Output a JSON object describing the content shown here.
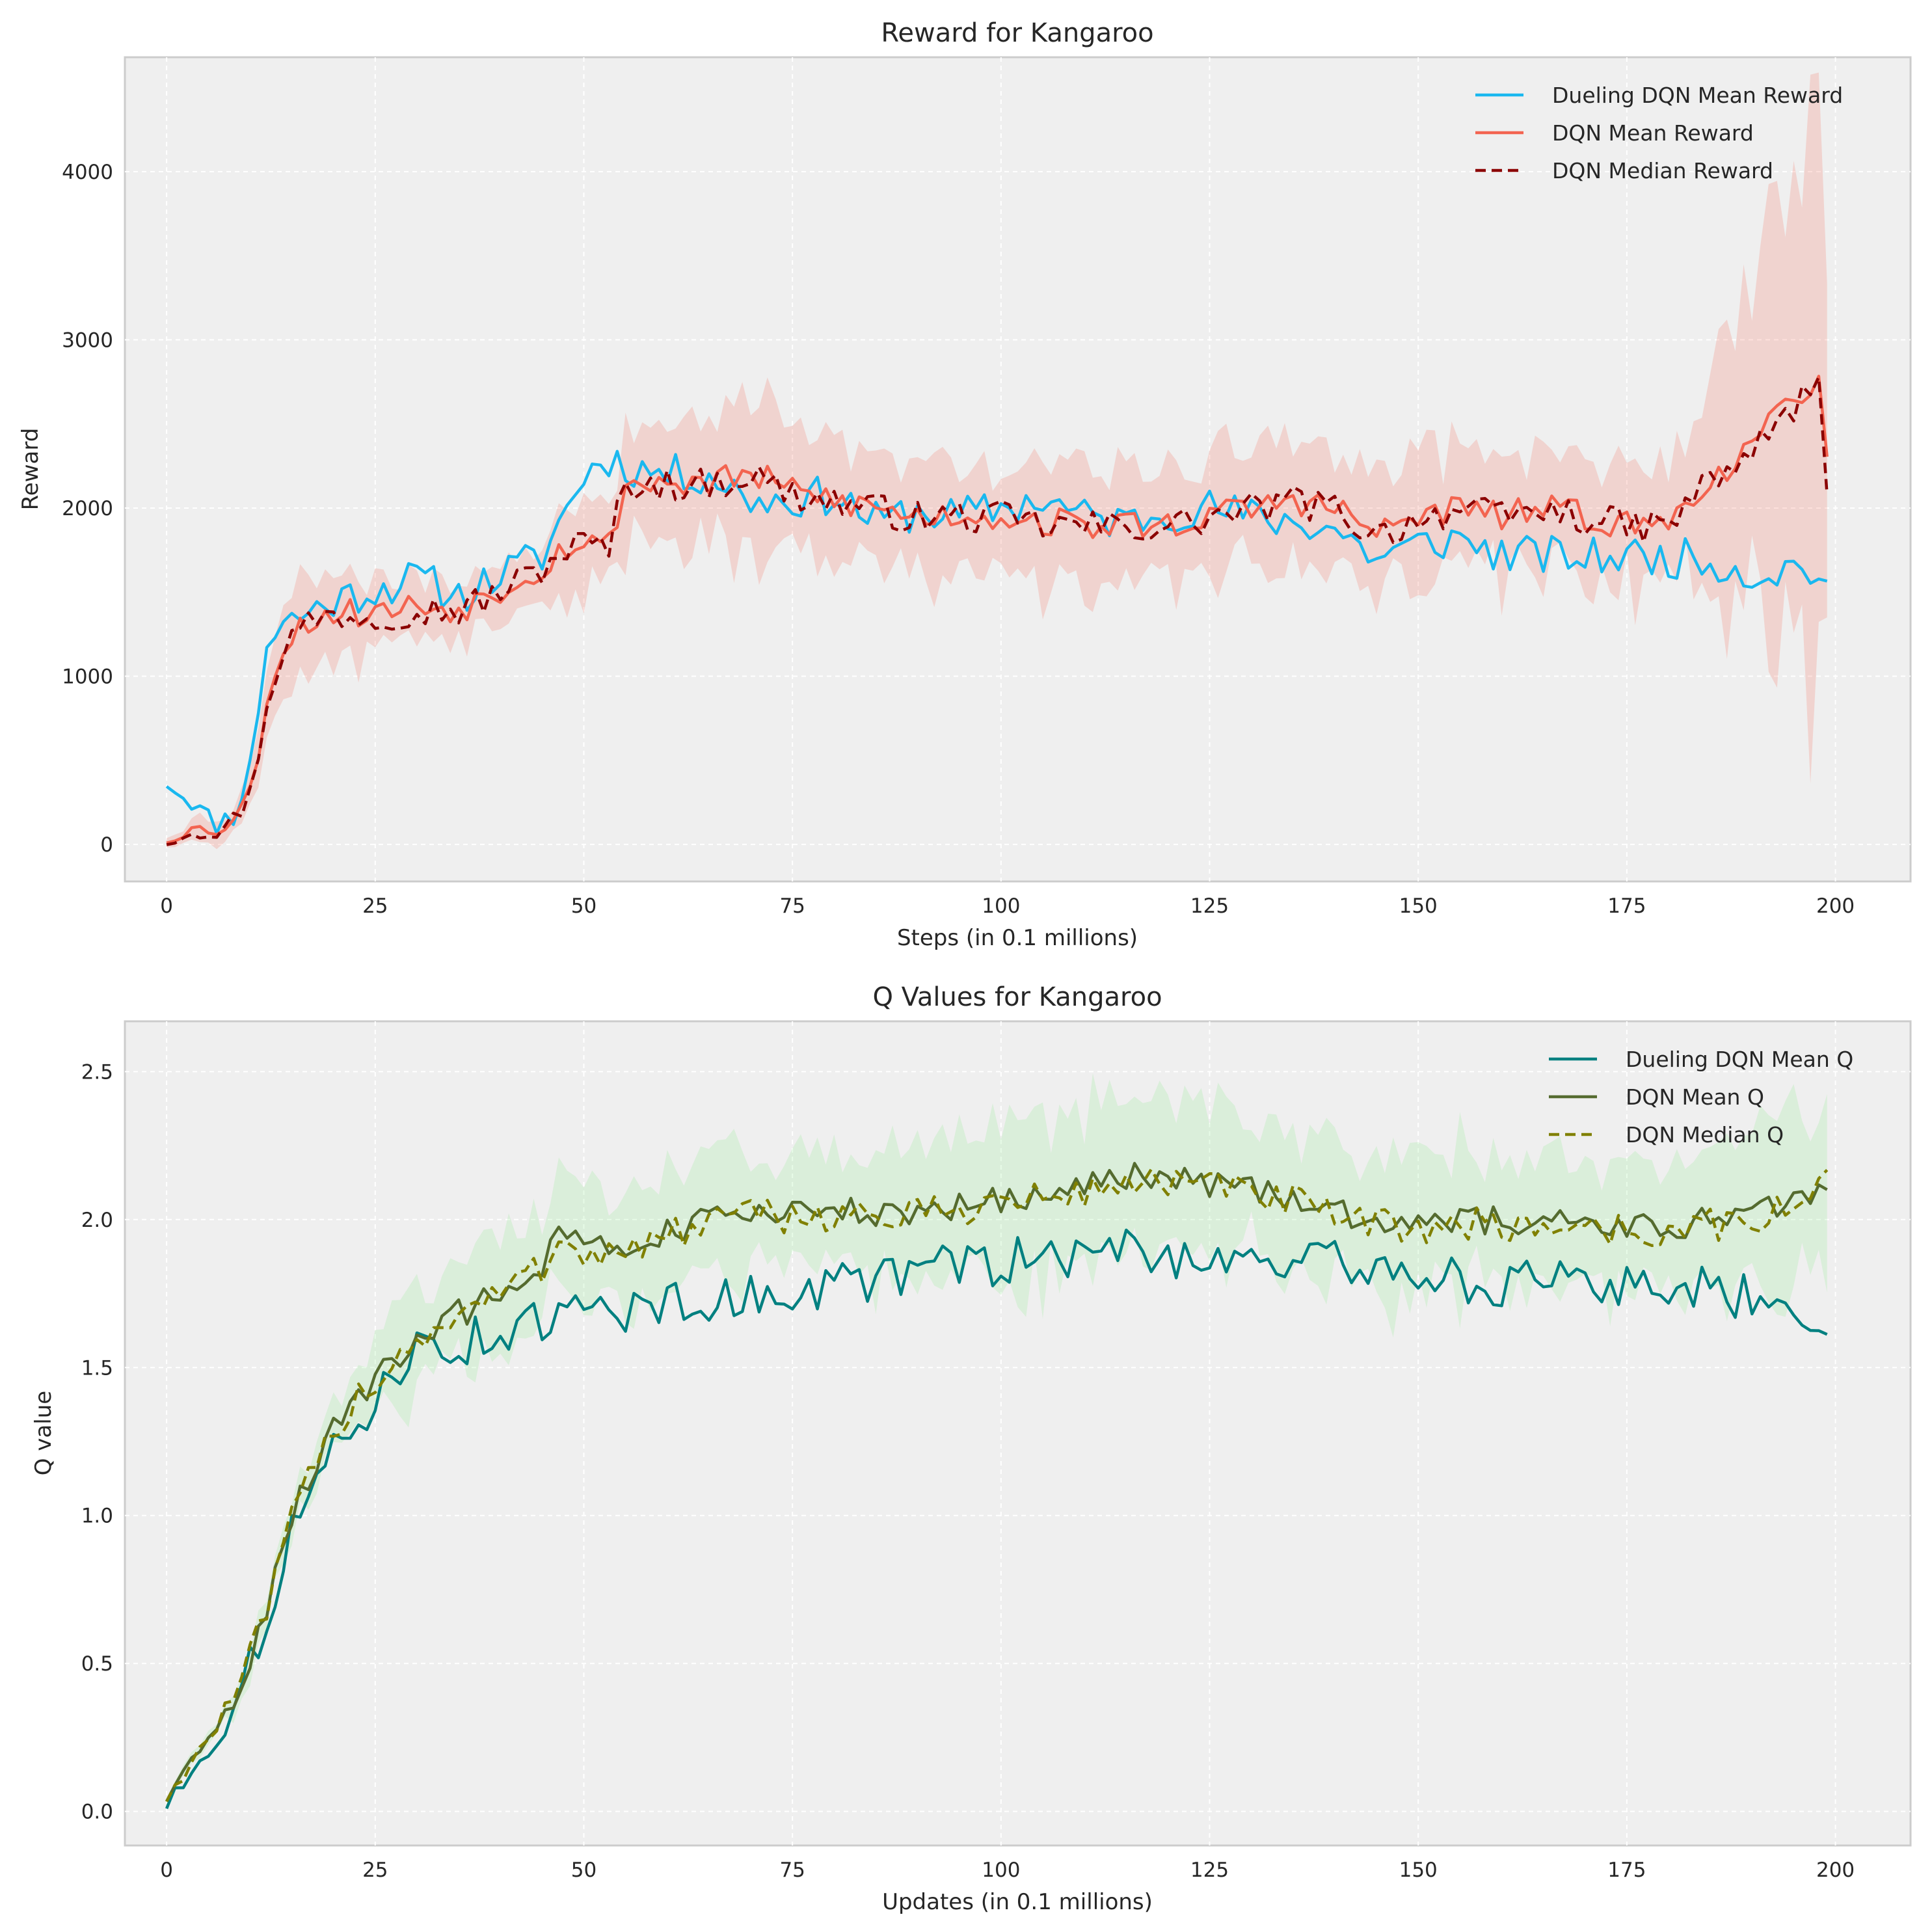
{
  "figure": {
    "background": "#ffffff",
    "axes_background": "#efefef"
  },
  "chart_data": [
    {
      "type": "line",
      "title": "Reward for Kangaroo",
      "xlabel": "Steps (in 0.1 millions)",
      "ylabel": "Reward",
      "xlim": [
        -5,
        209
      ],
      "ylim": [
        -220,
        4680
      ],
      "xticks": [
        0,
        25,
        50,
        75,
        100,
        125,
        150,
        175,
        200
      ],
      "yticks": [
        0,
        1000,
        2000,
        3000,
        4000
      ],
      "grid": true,
      "legend": "top-right",
      "knots": [
        0,
        3,
        6,
        8,
        10,
        12,
        14,
        17,
        20,
        25,
        30,
        35,
        40,
        45,
        48,
        50,
        53,
        55,
        60,
        65,
        70,
        75,
        80,
        85,
        90,
        95,
        100,
        105,
        110,
        115,
        120,
        125,
        130,
        135,
        140,
        145,
        150,
        155,
        160,
        165,
        170,
        175,
        180,
        183,
        186,
        190,
        195,
        198,
        199
      ],
      "series": [
        {
          "name": "Dueling DQN Mean Reward",
          "color": "#1ab8ef",
          "style": "solid",
          "values": [
            360,
            250,
            120,
            180,
            450,
            1200,
            1320,
            1380,
            1450,
            1520,
            1580,
            1480,
            1600,
            1720,
            2000,
            2200,
            2300,
            2250,
            2200,
            2200,
            2050,
            2050,
            2080,
            1920,
            1980,
            1950,
            2000,
            2050,
            1950,
            1920,
            1980,
            2000,
            1950,
            1920,
            1880,
            1700,
            1780,
            1820,
            1720,
            1720,
            1700,
            1720,
            1700,
            1700,
            1680,
            1600,
            1650,
            1620,
            1520
          ],
          "noise": 120
        },
        {
          "name": "DQN Mean Reward",
          "color": "#f36450",
          "style": "solid",
          "values": [
            20,
            90,
            90,
            150,
            300,
            850,
            1200,
            1330,
            1380,
            1380,
            1420,
            1400,
            1520,
            1650,
            1780,
            1800,
            1780,
            2150,
            2150,
            2150,
            2200,
            2100,
            2050,
            2000,
            1950,
            1960,
            1950,
            1920,
            1900,
            1900,
            1900,
            1950,
            2000,
            2050,
            2000,
            1850,
            1950,
            2000,
            1950,
            2000,
            1950,
            1900,
            1900,
            2100,
            2200,
            2350,
            2650,
            2800,
            2350
          ],
          "noise": 90
        },
        {
          "name": "DQN Median Reward",
          "color": "#8b0000",
          "style": "dashed",
          "values": [
            10,
            80,
            80,
            140,
            290,
            830,
            1180,
            1320,
            1370,
            1360,
            1400,
            1390,
            1500,
            1640,
            1760,
            1790,
            1760,
            2150,
            2140,
            2140,
            2200,
            2080,
            2040,
            1990,
            1940,
            1950,
            1940,
            1900,
            1890,
            1890,
            1890,
            1940,
            1990,
            2040,
            1990,
            1840,
            1940,
            1990,
            1940,
            1990,
            1940,
            1890,
            1890,
            2080,
            2180,
            2330,
            2600,
            2750,
            2000
          ],
          "noise": 100
        }
      ],
      "band": {
        "of": "DQN Mean Reward",
        "color": "#f36450",
        "halfwidth": [
          30,
          60,
          60,
          80,
          120,
          150,
          300,
          250,
          200,
          180,
          170,
          160,
          160,
          170,
          200,
          220,
          230,
          300,
          300,
          320,
          400,
          330,
          300,
          280,
          280,
          300,
          320,
          330,
          300,
          300,
          300,
          330,
          300,
          300,
          320,
          330,
          320,
          330,
          330,
          350,
          330,
          330,
          330,
          400,
          600,
          800,
          1300,
          1400,
          1300
        ]
      }
    },
    {
      "type": "line",
      "title": "Q Values for Kangaroo",
      "xlabel": "Updates (in 0.1 millions)",
      "ylabel": "Q value",
      "xlim": [
        -5,
        209
      ],
      "ylim": [
        -0.115,
        2.67
      ],
      "xticks": [
        0,
        25,
        50,
        75,
        100,
        125,
        150,
        175,
        200
      ],
      "yticks": [
        0.0,
        0.5,
        1.0,
        1.5,
        2.0,
        2.5
      ],
      "grid": true,
      "legend": "top-right",
      "knots": [
        0,
        5,
        8,
        10,
        12,
        14,
        16,
        18,
        20,
        23,
        25,
        28,
        30,
        35,
        40,
        45,
        48,
        50,
        55,
        60,
        65,
        70,
        75,
        80,
        85,
        90,
        95,
        100,
        105,
        110,
        115,
        120,
        125,
        130,
        135,
        140,
        145,
        150,
        155,
        160,
        165,
        170,
        175,
        180,
        185,
        190,
        195,
        199
      ],
      "series": [
        {
          "name": "Dueling DQN Mean Q",
          "color": "#008080",
          "style": "solid",
          "values": [
            0.02,
            0.22,
            0.33,
            0.5,
            0.65,
            0.87,
            1.0,
            1.1,
            1.2,
            1.3,
            1.4,
            1.52,
            1.55,
            1.58,
            1.62,
            1.65,
            1.68,
            1.68,
            1.7,
            1.72,
            1.72,
            1.74,
            1.76,
            1.78,
            1.8,
            1.82,
            1.85,
            1.85,
            1.88,
            1.88,
            1.9,
            1.88,
            1.88,
            1.88,
            1.86,
            1.85,
            1.84,
            1.82,
            1.8,
            1.78,
            1.78,
            1.78,
            1.78,
            1.78,
            1.76,
            1.74,
            1.74,
            1.62
          ],
          "noise": 0.08
        },
        {
          "name": "DQN Mean Q",
          "color": "#556b2f",
          "style": "solid",
          "values": [
            0.04,
            0.25,
            0.38,
            0.52,
            0.68,
            0.88,
            1.06,
            1.17,
            1.28,
            1.42,
            1.45,
            1.55,
            1.6,
            1.68,
            1.76,
            1.85,
            1.97,
            1.9,
            1.9,
            1.95,
            2.0,
            2.02,
            2.02,
            2.03,
            2.02,
            2.02,
            2.05,
            2.07,
            2.08,
            2.1,
            2.15,
            2.15,
            2.12,
            2.1,
            2.08,
            2.02,
            2.0,
            2.0,
            2.0,
            2.0,
            2.0,
            2.0,
            1.98,
            1.97,
            2.0,
            2.02,
            2.05,
            2.15
          ],
          "noise": 0.05
        },
        {
          "name": "DQN Median Q",
          "color": "#808000",
          "style": "dashed",
          "values": [
            0.04,
            0.25,
            0.38,
            0.52,
            0.68,
            0.88,
            1.06,
            1.17,
            1.28,
            1.42,
            1.45,
            1.54,
            1.6,
            1.67,
            1.75,
            1.84,
            1.95,
            1.89,
            1.89,
            1.94,
            1.99,
            2.01,
            2.01,
            2.02,
            2.01,
            2.01,
            2.04,
            2.06,
            2.07,
            2.09,
            2.13,
            2.13,
            2.11,
            2.09,
            2.06,
            2.0,
            1.98,
            1.98,
            1.98,
            1.98,
            1.98,
            1.98,
            1.96,
            1.95,
            1.98,
            2.0,
            2.03,
            2.15
          ],
          "noise": 0.06
        }
      ],
      "band": {
        "of": "DQN Mean Q",
        "color": "#90ee90",
        "halfwidth": [
          0.01,
          0.02,
          0.03,
          0.04,
          0.05,
          0.06,
          0.06,
          0.07,
          0.08,
          0.1,
          0.12,
          0.15,
          0.16,
          0.17,
          0.18,
          0.17,
          0.16,
          0.16,
          0.17,
          0.18,
          0.19,
          0.2,
          0.2,
          0.2,
          0.2,
          0.2,
          0.2,
          0.22,
          0.22,
          0.22,
          0.25,
          0.25,
          0.22,
          0.22,
          0.2,
          0.2,
          0.2,
          0.22,
          0.22,
          0.2,
          0.2,
          0.2,
          0.2,
          0.2,
          0.2,
          0.22,
          0.25,
          0.22
        ]
      }
    }
  ]
}
